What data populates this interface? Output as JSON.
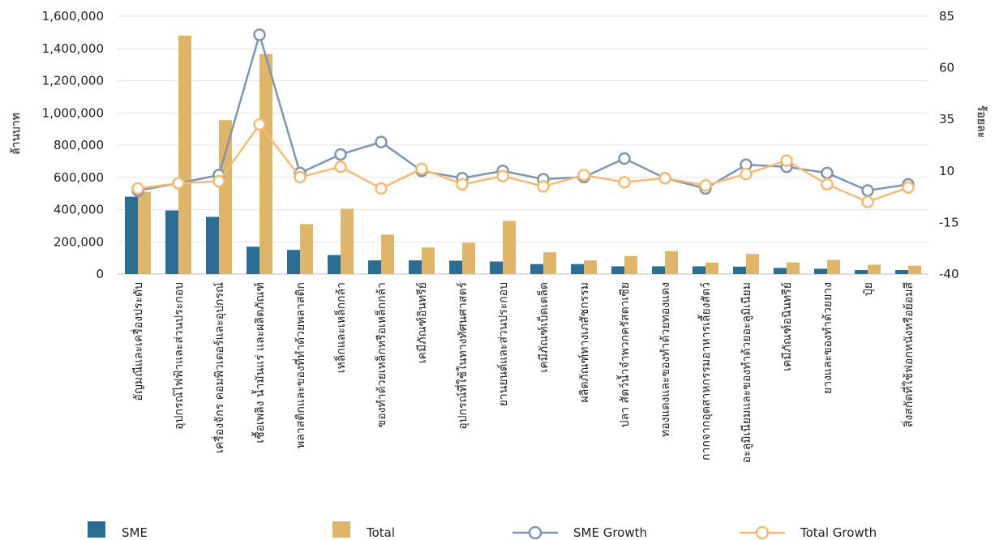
{
  "chart_data": {
    "type": "bar",
    "categories": [
      "อัญมณีและเครื่องประดับ",
      "อุปกรณ์ไฟฟ้าและส่วนประกอบ",
      "เครื่องจักร คอมพิวเตอร์และอุปกรณ์",
      "เชื้อเพลิง น้ำมันแร่ และผลิตภัณฑ์",
      "พลาสติกและของที่ทำด้วยพลาสติก",
      "เหล็กและเหล็กกล้า",
      "ของทำด้วยเหล็กหรือเหล็กกล้า",
      "เคมีภัณฑ์อินทรีย์",
      "อุปกรณ์ที่ใช้ในทางทัศนศาสตร์",
      "ยานยนต์และส่วนประกอบ",
      "เคมีภัณฑ์เบ็ดเตล็ด",
      "ผลิตภัณฑ์ทางเภสัชกรรม",
      "ปลา สัตว์น้ำจำพวกครัสตาเซีย",
      "ทองแดงและของทำด้วยทองแดง",
      "กากจากอุตสาหกรรมอาหารเลี้ยงสัตว์",
      "อะลูมิเนียมและของทำด้วยอะลูมิเนียม",
      "เคมีภัณฑ์อนินทรีย์",
      "ยางและของทำด้วยยาง",
      "ปุ๋ย",
      "สิ่งสกัดที่ใช้ฟอกหนังหรือย้อมสี"
    ],
    "series": [
      {
        "name": "SME",
        "axis": "left",
        "type": "bar",
        "color": "#2b6e94",
        "values": [
          480000,
          395000,
          355000,
          170000,
          150000,
          118000,
          85000,
          85000,
          83000,
          78000,
          62000,
          62000,
          48000,
          48000,
          48000,
          46000,
          38000,
          33000,
          25000,
          25000
        ]
      },
      {
        "name": "Total",
        "axis": "left",
        "type": "bar",
        "color": "#dfb56a",
        "values": [
          510000,
          1480000,
          955000,
          1365000,
          310000,
          405000,
          245000,
          165000,
          195000,
          330000,
          135000,
          85000,
          112000,
          142000,
          72000,
          125000,
          72000,
          88000,
          58000,
          52000
        ]
      },
      {
        "name": "SME Growth",
        "axis": "right",
        "type": "line",
        "color": "#8095b0",
        "values": [
          0.5,
          4,
          8,
          76,
          9,
          18,
          24,
          10,
          6.5,
          10,
          6,
          7,
          16,
          6.5,
          1.5,
          13,
          12,
          9,
          0.5,
          3.5
        ]
      },
      {
        "name": "Total Growth",
        "axis": "right",
        "type": "line",
        "color": "#f5bb73",
        "values": [
          1.5,
          4,
          5,
          32.5,
          7,
          12,
          1.5,
          11,
          3.5,
          7.5,
          2.5,
          8,
          4.5,
          6.5,
          3,
          8.5,
          15,
          3.5,
          -5,
          2
        ]
      }
    ],
    "ylabel": "ล้านบาท",
    "y2label": "ร้อยละ",
    "ylim": [
      0,
      1600000
    ],
    "y2lim": [
      -40,
      85
    ],
    "yticks": [
      "0",
      "200,000",
      "400,000",
      "600,000",
      "800,000",
      "1,000,000",
      "1,200,000",
      "1,400,000",
      "1,600,000"
    ],
    "y2ticks": [
      "-40",
      "-15",
      "10",
      "35",
      "60",
      "85"
    ],
    "grid": true,
    "legend_position": "bottom"
  }
}
